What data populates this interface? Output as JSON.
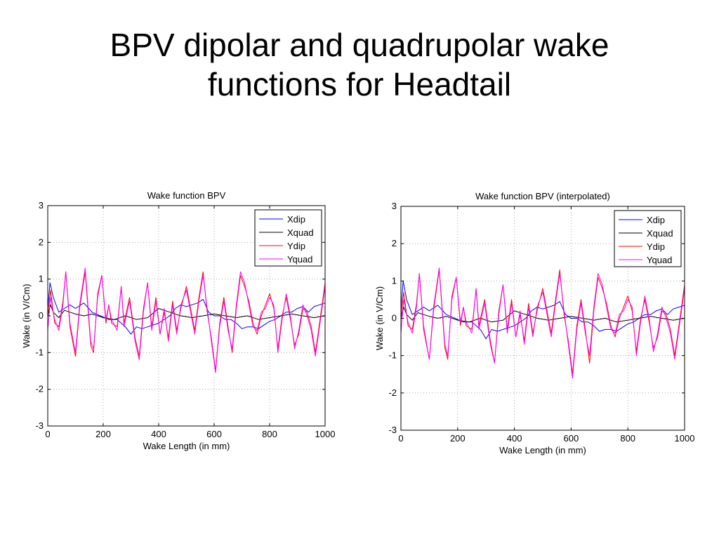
{
  "slide": {
    "title_line1": "BPV dipolar and quadrupolar wake",
    "title_line2": "functions for Headtail"
  },
  "chart_data": [
    {
      "type": "line",
      "title": "Wake function BPV",
      "xlabel": "Wake Length (in mm)",
      "ylabel": "Wake (in  V/Cm)",
      "xlim": [
        0,
        1000
      ],
      "ylim": [
        -3,
        3
      ],
      "xticks": [
        0,
        200,
        400,
        600,
        800,
        1000
      ],
      "yticks": [
        -3,
        -2,
        -1,
        0,
        1,
        2,
        3
      ],
      "grid": true,
      "legend": "top-right",
      "series": [
        {
          "name": "Xdip",
          "color": "#0000ff",
          "x": [
            0,
            8,
            20,
            40,
            60,
            80,
            100,
            130,
            160,
            190,
            220,
            250,
            280,
            300,
            320,
            340,
            360,
            380,
            400,
            420,
            440,
            460,
            480,
            500,
            520,
            540,
            560,
            580,
            600,
            620,
            640,
            660,
            680,
            700,
            720,
            740,
            760,
            780,
            800,
            820,
            840,
            860,
            880,
            900,
            920,
            940,
            960,
            980,
            1000
          ],
          "y": [
            0.2,
            0.9,
            0.5,
            0.1,
            0.2,
            0.3,
            0.2,
            0.35,
            0.1,
            0.0,
            -0.1,
            -0.1,
            -0.3,
            -0.5,
            -0.3,
            -0.35,
            -0.3,
            -0.25,
            -0.2,
            -0.1,
            0.0,
            0.2,
            0.3,
            0.25,
            0.3,
            0.35,
            0.45,
            0.1,
            0.0,
            0.0,
            -0.1,
            -0.1,
            -0.2,
            -0.35,
            -0.3,
            -0.3,
            -0.35,
            -0.25,
            -0.15,
            -0.1,
            0.0,
            0.1,
            0.1,
            0.2,
            0.25,
            0.1,
            0.25,
            0.3,
            0.35
          ]
        },
        {
          "name": "Xquad",
          "color": "#000000",
          "x": [
            0,
            10,
            20,
            40,
            60,
            80,
            100,
            130,
            160,
            200,
            240,
            280,
            320,
            360,
            400,
            440,
            480,
            520,
            560,
            600,
            640,
            680,
            720,
            760,
            800,
            840,
            880,
            920,
            960,
            1000
          ],
          "y": [
            0.0,
            0.3,
            0.1,
            -0.05,
            0.15,
            0.1,
            0.05,
            0.0,
            0.05,
            -0.05,
            -0.1,
            0.0,
            -0.1,
            -0.05,
            0.2,
            0.1,
            0.0,
            -0.05,
            0.0,
            0.05,
            0.0,
            -0.05,
            0.0,
            -0.1,
            -0.05,
            0.0,
            0.05,
            0.0,
            -0.05,
            0.0
          ]
        },
        {
          "name": "Ydip",
          "color": "#ff0000",
          "x": [
            0,
            10,
            25,
            40,
            55,
            65,
            80,
            100,
            115,
            135,
            155,
            165,
            180,
            195,
            210,
            220,
            230,
            250,
            265,
            275,
            295,
            315,
            330,
            345,
            360,
            375,
            390,
            405,
            420,
            435,
            450,
            465,
            480,
            500,
            515,
            530,
            545,
            560,
            575,
            590,
            605,
            620,
            635,
            650,
            665,
            680,
            695,
            710,
            725,
            740,
            755,
            770,
            785,
            800,
            815,
            830,
            845,
            860,
            875,
            890,
            905,
            920,
            935,
            950,
            965,
            980,
            1000
          ],
          "y": [
            0.0,
            0.7,
            -0.2,
            -0.3,
            0.4,
            1.2,
            -0.3,
            -1.1,
            0.2,
            1.2,
            -0.8,
            -1.0,
            0.6,
            1.1,
            -0.2,
            0.3,
            -0.2,
            -0.3,
            0.8,
            -0.2,
            0.5,
            -0.6,
            -1.1,
            0.2,
            0.9,
            -0.3,
            0.5,
            -0.5,
            0.1,
            -0.6,
            0.4,
            -0.4,
            0.2,
            0.8,
            0.2,
            -0.4,
            0.5,
            1.2,
            0.1,
            -0.6,
            -1.5,
            -0.2,
            0.5,
            -0.3,
            -1.0,
            0.2,
            1.1,
            0.8,
            0.4,
            -0.2,
            -0.5,
            0.0,
            0.3,
            0.6,
            0.2,
            -0.9,
            0.0,
            0.5,
            -0.1,
            -0.8,
            -0.5,
            0.2,
            0.1,
            -0.3,
            -1.0,
            -0.2,
            0.9
          ]
        },
        {
          "name": "Yquad",
          "color": "#ff00ff",
          "x": [
            0,
            10,
            25,
            40,
            55,
            65,
            80,
            100,
            115,
            135,
            155,
            165,
            180,
            195,
            210,
            220,
            230,
            250,
            265,
            275,
            295,
            315,
            330,
            345,
            360,
            375,
            390,
            405,
            420,
            435,
            450,
            465,
            480,
            500,
            515,
            530,
            545,
            560,
            575,
            590,
            605,
            620,
            635,
            650,
            665,
            680,
            695,
            710,
            725,
            740,
            755,
            770,
            785,
            800,
            815,
            830,
            845,
            860,
            875,
            890,
            905,
            920,
            935,
            950,
            965,
            980,
            1000
          ],
          "y": [
            -0.4,
            0.5,
            -0.1,
            -0.4,
            0.3,
            1.2,
            -0.2,
            -1.0,
            0.3,
            1.3,
            -0.7,
            -0.9,
            0.5,
            1.1,
            -0.1,
            0.3,
            -0.1,
            -0.4,
            0.8,
            -0.3,
            0.4,
            -0.7,
            -1.2,
            0.1,
            0.9,
            -0.4,
            0.4,
            -0.5,
            0.2,
            -0.7,
            0.3,
            -0.5,
            0.3,
            0.7,
            0.1,
            -0.5,
            0.4,
            1.1,
            0.2,
            -0.7,
            -1.55,
            -0.3,
            0.4,
            -0.4,
            -0.9,
            0.3,
            1.2,
            0.9,
            0.3,
            -0.3,
            -0.4,
            0.1,
            0.2,
            0.5,
            0.3,
            -1.0,
            -0.1,
            0.6,
            0.0,
            -0.9,
            -0.4,
            0.3,
            0.0,
            -0.4,
            -1.1,
            -0.3,
            0.8
          ]
        }
      ]
    },
    {
      "type": "line",
      "title": "Wake function BPV (interpolated)",
      "xlabel": "Wake Length (in mm)",
      "ylabel": "Wake (in  V/Cm)",
      "xlim": [
        0,
        1000
      ],
      "ylim": [
        -3,
        3
      ],
      "xticks": [
        0,
        200,
        400,
        600,
        800,
        1000
      ],
      "yticks": [
        -3,
        -2,
        -1,
        0,
        1,
        2,
        3
      ],
      "grid": true,
      "legend": "top-right",
      "series": [
        {
          "name": "Xdip",
          "color": "#0000ff",
          "x": [
            0,
            8,
            20,
            40,
            60,
            80,
            100,
            130,
            160,
            190,
            220,
            250,
            280,
            300,
            320,
            340,
            360,
            380,
            400,
            420,
            440,
            460,
            480,
            500,
            520,
            540,
            560,
            580,
            600,
            620,
            640,
            660,
            680,
            700,
            720,
            740,
            760,
            780,
            800,
            820,
            840,
            860,
            880,
            900,
            920,
            940,
            960,
            980,
            1000
          ],
          "y": [
            0.2,
            1.0,
            0.5,
            0.1,
            0.2,
            0.3,
            0.2,
            0.35,
            0.1,
            0.0,
            -0.1,
            -0.1,
            -0.3,
            -0.55,
            -0.3,
            -0.35,
            -0.3,
            -0.25,
            -0.2,
            -0.1,
            0.0,
            0.2,
            0.3,
            0.25,
            0.3,
            0.35,
            0.45,
            0.1,
            0.0,
            0.0,
            -0.1,
            -0.1,
            -0.2,
            -0.35,
            -0.3,
            -0.3,
            -0.35,
            -0.25,
            -0.15,
            -0.1,
            0.0,
            0.1,
            0.1,
            0.2,
            0.25,
            0.1,
            0.25,
            0.3,
            0.35
          ]
        },
        {
          "name": "Xquad",
          "color": "#000000",
          "x": [
            0,
            10,
            20,
            40,
            60,
            80,
            100,
            130,
            160,
            200,
            240,
            280,
            320,
            360,
            400,
            440,
            480,
            520,
            560,
            600,
            640,
            680,
            720,
            760,
            800,
            840,
            880,
            920,
            960,
            1000
          ],
          "y": [
            0.0,
            0.3,
            0.1,
            -0.05,
            0.15,
            0.1,
            0.05,
            0.0,
            0.05,
            -0.05,
            -0.1,
            0.0,
            -0.1,
            -0.05,
            0.2,
            0.1,
            0.0,
            -0.05,
            0.0,
            0.05,
            0.0,
            -0.05,
            0.0,
            -0.1,
            -0.05,
            0.0,
            0.05,
            0.0,
            -0.05,
            0.0
          ]
        },
        {
          "name": "Ydip",
          "color": "#ff0000",
          "x": [
            0,
            10,
            25,
            40,
            55,
            65,
            80,
            100,
            115,
            135,
            155,
            165,
            180,
            195,
            210,
            220,
            230,
            250,
            265,
            275,
            295,
            315,
            330,
            345,
            360,
            375,
            390,
            405,
            420,
            435,
            450,
            465,
            480,
            500,
            515,
            530,
            545,
            560,
            575,
            590,
            605,
            620,
            635,
            650,
            665,
            680,
            695,
            710,
            725,
            740,
            755,
            770,
            785,
            800,
            815,
            830,
            845,
            860,
            875,
            890,
            905,
            920,
            935,
            950,
            965,
            980,
            1000
          ],
          "y": [
            0.0,
            0.7,
            -0.2,
            -0.3,
            0.4,
            1.2,
            -0.3,
            -1.1,
            0.2,
            1.3,
            -0.8,
            -1.1,
            0.6,
            1.1,
            -0.2,
            0.3,
            -0.2,
            -0.3,
            0.8,
            -0.2,
            0.5,
            -0.6,
            -1.2,
            0.2,
            0.9,
            -0.3,
            0.5,
            -0.5,
            0.1,
            -0.6,
            0.4,
            -0.4,
            0.2,
            0.8,
            0.2,
            -0.4,
            0.5,
            1.3,
            0.1,
            -0.6,
            -1.5,
            -0.2,
            0.5,
            -0.3,
            -1.2,
            0.2,
            1.1,
            0.8,
            0.4,
            -0.2,
            -0.5,
            0.0,
            0.3,
            0.6,
            0.2,
            -0.9,
            0.0,
            0.5,
            -0.1,
            -0.8,
            -0.5,
            0.2,
            0.1,
            -0.3,
            -1.0,
            -0.2,
            0.9
          ]
        },
        {
          "name": "Yquad",
          "color": "#ff00ff",
          "x": [
            0,
            10,
            25,
            40,
            55,
            65,
            80,
            100,
            115,
            135,
            155,
            165,
            180,
            195,
            210,
            220,
            230,
            250,
            265,
            275,
            295,
            315,
            330,
            345,
            360,
            375,
            390,
            405,
            420,
            435,
            450,
            465,
            480,
            500,
            515,
            530,
            545,
            560,
            575,
            590,
            605,
            620,
            635,
            650,
            665,
            680,
            695,
            710,
            725,
            740,
            755,
            770,
            785,
            800,
            815,
            830,
            845,
            860,
            875,
            890,
            905,
            920,
            935,
            950,
            965,
            980,
            1000
          ],
          "y": [
            -0.4,
            0.5,
            -0.1,
            -0.4,
            0.3,
            1.2,
            -0.2,
            -1.1,
            0.3,
            1.35,
            -0.7,
            -1.0,
            0.5,
            1.1,
            -0.1,
            0.3,
            -0.1,
            -0.4,
            0.8,
            -0.3,
            0.4,
            -0.7,
            -1.2,
            0.1,
            0.9,
            -0.4,
            0.4,
            -0.5,
            0.2,
            -0.7,
            0.3,
            -0.5,
            0.3,
            0.7,
            0.1,
            -0.5,
            0.4,
            1.2,
            0.2,
            -0.7,
            -1.6,
            -0.3,
            0.4,
            -0.4,
            -1.0,
            0.3,
            1.2,
            0.9,
            0.3,
            -0.3,
            -0.4,
            0.1,
            0.2,
            0.5,
            0.3,
            -1.0,
            -0.1,
            0.6,
            0.0,
            -0.9,
            -0.4,
            0.3,
            0.0,
            -0.4,
            -1.1,
            -0.3,
            0.8
          ]
        }
      ]
    }
  ]
}
